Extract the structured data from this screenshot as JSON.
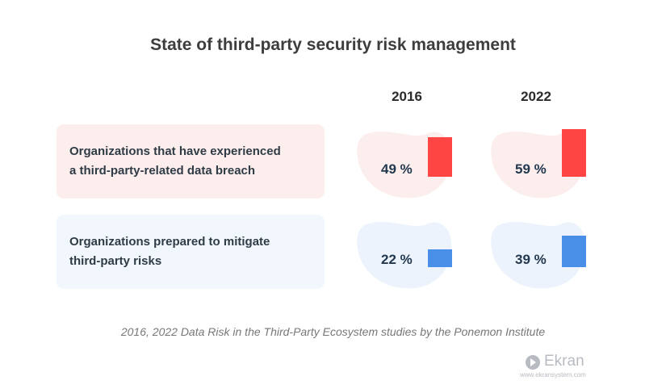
{
  "chart_data": {
    "type": "bar",
    "title": "State of third-party security risk management",
    "years": [
      "2016",
      "2022"
    ],
    "categories": [
      "Organizations that have experienced a third-party-related data breach",
      "Organizations prepared to mitigate third-party risks"
    ],
    "series": [
      {
        "name": "2016",
        "values": [
          49,
          22
        ]
      },
      {
        "name": "2022",
        "values": [
          59,
          39
        ]
      }
    ],
    "value_labels": [
      [
        "49 %",
        "59 %"
      ],
      [
        "22 %",
        "39 %"
      ]
    ],
    "ylim": [
      0,
      100
    ],
    "colors": {
      "breach": "#ff4444",
      "prepared": "#4a8fe7",
      "breach_bg": "#fdeeee",
      "prepared_bg": "#ecf3fd"
    }
  },
  "row_labels": [
    {
      "line1": "Organizations that have experienced",
      "line2": "a third-party-related data breach"
    },
    {
      "line1": "Organizations prepared to mitigate",
      "line2": "third-party risks"
    }
  ],
  "source": "2016, 2022 Data Risk in the Third-Party Ecosystem studies by the Ponemon Institute",
  "logo": {
    "brand": "Ekran",
    "url": "www.ekransystem.com",
    "icon": "play-arrow-icon"
  }
}
